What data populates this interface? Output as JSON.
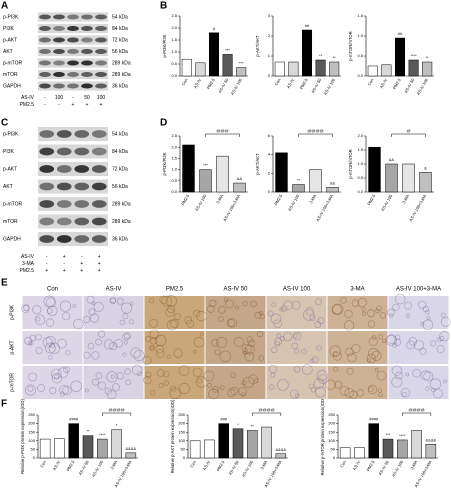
{
  "panel_labels": [
    "A",
    "B",
    "C",
    "D",
    "E",
    "F"
  ],
  "blot_a": {
    "proteins": [
      "p-PI3K",
      "PI3K",
      "p-AKT",
      "AKT",
      "p-mTOR",
      "mTOR",
      "GAPDH"
    ],
    "kda": [
      "54 kDa",
      "84 kDa",
      "72 kDa",
      "56 kDa",
      "289 kDa",
      "289 kDa",
      "36 kDa"
    ],
    "treatments": [
      {
        "name": "AS-IV",
        "values": [
          "-",
          "100",
          "-",
          "50",
          "100"
        ]
      },
      {
        "name": "PM2.5",
        "values": [
          "-",
          "-",
          "+",
          "+",
          "+"
        ]
      }
    ]
  },
  "blot_c": {
    "proteins": [
      "p-PI3K",
      "PI3K",
      "p-AKT",
      "AKT",
      "p-mTOR",
      "mTOR",
      "GAPDH"
    ],
    "kda": [
      "54 kDa",
      "84 kDa",
      "72 kDa",
      "56 kDa",
      "289 kDa",
      "289 kDa",
      "36 kDa"
    ],
    "treatments": [
      {
        "name": "AS-IV",
        "values": [
          "-",
          "+",
          "-",
          "+"
        ]
      },
      {
        "name": "3-MA",
        "values": [
          "-",
          "-",
          "+",
          "+"
        ]
      },
      {
        "name": "PM2.5",
        "values": [
          "+",
          "+",
          "+",
          "+"
        ]
      }
    ]
  },
  "histology": {
    "columns": [
      "Con",
      "AS-IV",
      "PM2.5",
      "AS-IV 50",
      "AS-IV 100",
      "3-MA",
      "AS-IV 100+3-MA"
    ],
    "rows": [
      "p-PI3K",
      "p-AKT",
      "p-mTOR"
    ]
  },
  "chart_data": [
    {
      "type": "bar",
      "ylabel": "p-PI3K/PI3K",
      "categories": [
        "Con",
        "AS-IV",
        "PM2.5",
        "AS-IV 50",
        "AS-IV 100"
      ],
      "values": [
        0.7,
        0.55,
        1.8,
        0.9,
        0.35
      ],
      "colors": [
        "#ffffff",
        "#d9d9d9",
        "#000000",
        "#595959",
        "#bfbfbf"
      ],
      "annotations": [
        null,
        null,
        "#",
        "***",
        "***"
      ],
      "ylim": [
        0,
        2.5
      ],
      "yticks": [
        {
          "value": 0,
          "label": "0.0"
        },
        {
          "value": 0.5,
          "label": "0.5"
        },
        {
          "value": 1,
          "label": "1.0"
        },
        {
          "value": 1.5,
          "label": "1.5"
        },
        {
          "value": 2,
          "label": "2.0"
        },
        {
          "value": 2.5,
          "label": "2.5"
        }
      ]
    },
    {
      "type": "bar",
      "ylabel": "p-AKT/AKT",
      "categories": [
        "Con",
        "AS-IV",
        "PM2.5",
        "AS-IV 50",
        "AS-IV 100"
      ],
      "values": [
        0.7,
        0.7,
        2.3,
        0.8,
        0.7
      ],
      "colors": [
        "#ffffff",
        "#d9d9d9",
        "#000000",
        "#595959",
        "#bfbfbf"
      ],
      "annotations": [
        null,
        null,
        "##",
        "**",
        "**"
      ],
      "ylim": [
        0,
        3
      ],
      "yticks": [
        0,
        1,
        2,
        3
      ]
    },
    {
      "type": "bar",
      "ylabel": "p-mTOR/mTOR",
      "categories": [
        "Con",
        "AS-IV",
        "PM2.5",
        "AS-IV 50",
        "AS-IV 100"
      ],
      "values": [
        0.25,
        0.28,
        0.95,
        0.4,
        0.35
      ],
      "colors": [
        "#ffffff",
        "#d9d9d9",
        "#000000",
        "#595959",
        "#bfbfbf"
      ],
      "annotations": [
        null,
        null,
        "##",
        "****",
        "**"
      ],
      "ylim": [
        0,
        1.5
      ],
      "yticks": [
        {
          "value": 0,
          "label": "0.0"
        },
        {
          "value": 0.5,
          "label": "0.5"
        },
        {
          "value": 1,
          "label": "1.0"
        },
        {
          "value": 1.5,
          "label": "1.5"
        }
      ]
    },
    {
      "type": "bar",
      "ylabel": "p-PI3K/PI3K",
      "categories": [
        "PM2.5",
        "AS-IV 100",
        "3-MA",
        "AS-IV 100+3-MA"
      ],
      "values": [
        2.1,
        1.0,
        1.6,
        0.4
      ],
      "colors": [
        "#000000",
        "#a6a6a6",
        "#e6e6e6",
        "#bfbfbf"
      ],
      "annotations": [
        null,
        "***",
        null,
        "&&"
      ],
      "bracket_label": "@@@",
      "ylim": [
        0,
        2.5
      ],
      "yticks": [
        {
          "value": 0,
          "label": "0.0"
        },
        {
          "value": 0.5,
          "label": "0.5"
        },
        {
          "value": 1,
          "label": "1.0"
        },
        {
          "value": 1.5,
          "label": "1.5"
        },
        {
          "value": 2,
          "label": "2.0"
        },
        {
          "value": 2.5,
          "label": "2.5"
        }
      ]
    },
    {
      "type": "bar",
      "ylabel": "p-AKT/AKT",
      "categories": [
        "PM2.5",
        "AS-IV 100",
        "3-MA",
        "AS-IV 100+3-MA"
      ],
      "values": [
        4.2,
        0.8,
        2.4,
        0.5
      ],
      "colors": [
        "#000000",
        "#a6a6a6",
        "#e6e6e6",
        "#bfbfbf"
      ],
      "annotations": [
        null,
        "**",
        null,
        "&&"
      ],
      "bracket_label": "@@@@",
      "ylim": [
        0,
        6
      ],
      "yticks": [
        0,
        2,
        4,
        6
      ]
    },
    {
      "type": "bar",
      "ylabel": "p-mTOR/mTOR",
      "categories": [
        "PM2.5",
        "AS-IV 100",
        "3-MA",
        "AS-IV 100+3-MA"
      ],
      "values": [
        1.6,
        1.0,
        1.0,
        0.7
      ],
      "colors": [
        "#000000",
        "#a6a6a6",
        "#e6e6e6",
        "#bfbfbf"
      ],
      "annotations": [
        null,
        "&&",
        null,
        "&"
      ],
      "bracket_label": "@",
      "ylim": [
        0,
        2
      ],
      "yticks": [
        {
          "value": 0,
          "label": "0.0"
        },
        {
          "value": 0.5,
          "label": "0.5"
        },
        {
          "value": 1,
          "label": "1.0"
        },
        {
          "value": 1.5,
          "label": "1.5"
        },
        {
          "value": 2,
          "label": "2.0"
        }
      ]
    },
    {
      "type": "bar",
      "ylabel": "Relative p-PI3K protein expression(IOD)",
      "categories": [
        "Con",
        "AS-IV",
        "PM2.5",
        "AS-IV 50",
        "AS-IV 100",
        "3-MA",
        "AS-IV 100+3-MA"
      ],
      "values": [
        110,
        112,
        200,
        130,
        110,
        165,
        30
      ],
      "colors": [
        "#ffffff",
        "#ffffff",
        "#000000",
        "#595959",
        "#a6a6a6",
        "#d9d9d9",
        "#bfbfbf"
      ],
      "annotations": [
        null,
        null,
        "####",
        "**",
        "****",
        "*",
        "&&&&"
      ],
      "bracket_label": "@@@@",
      "ylim": [
        0,
        250
      ],
      "yticks": [
        0,
        50,
        100,
        150,
        200,
        250
      ]
    },
    {
      "type": "bar",
      "ylabel": "Relative p-AKT protein expression(IOD)",
      "categories": [
        "Con",
        "AS-IV",
        "PM2.5",
        "AS-IV 50",
        "AS-IV 100",
        "3-MA",
        "AS-IV 100+3-MA"
      ],
      "values": [
        100,
        105,
        200,
        170,
        160,
        180,
        25
      ],
      "colors": [
        "#ffffff",
        "#ffffff",
        "#000000",
        "#595959",
        "#a6a6a6",
        "#d9d9d9",
        "#bfbfbf"
      ],
      "annotations": [
        null,
        null,
        "###",
        "*",
        "**",
        null,
        "&&&&"
      ],
      "bracket_label": "@@@@",
      "ylim": [
        0,
        250
      ],
      "yticks": [
        0,
        50,
        100,
        150,
        200,
        250
      ]
    },
    {
      "type": "bar",
      "ylabel": "Relative p-mTOR protein expression(IOD)",
      "categories": [
        "Con",
        "AS-IV",
        "PM2.5",
        "AS-IV 50",
        "AS-IV 100",
        "3-MA",
        "AS-IV 100+3-MA"
      ],
      "values": [
        60,
        60,
        200,
        110,
        105,
        160,
        80
      ],
      "colors": [
        "#ffffff",
        "#ffffff",
        "#000000",
        "#595959",
        "#a6a6a6",
        "#d9d9d9",
        "#bfbfbf"
      ],
      "annotations": [
        null,
        null,
        "####",
        "***",
        "****",
        null,
        "&&&&"
      ],
      "bracket_label": "@@@@",
      "ylim": [
        0,
        250
      ],
      "yticks": [
        0,
        50,
        100,
        150,
        200,
        250
      ]
    }
  ]
}
